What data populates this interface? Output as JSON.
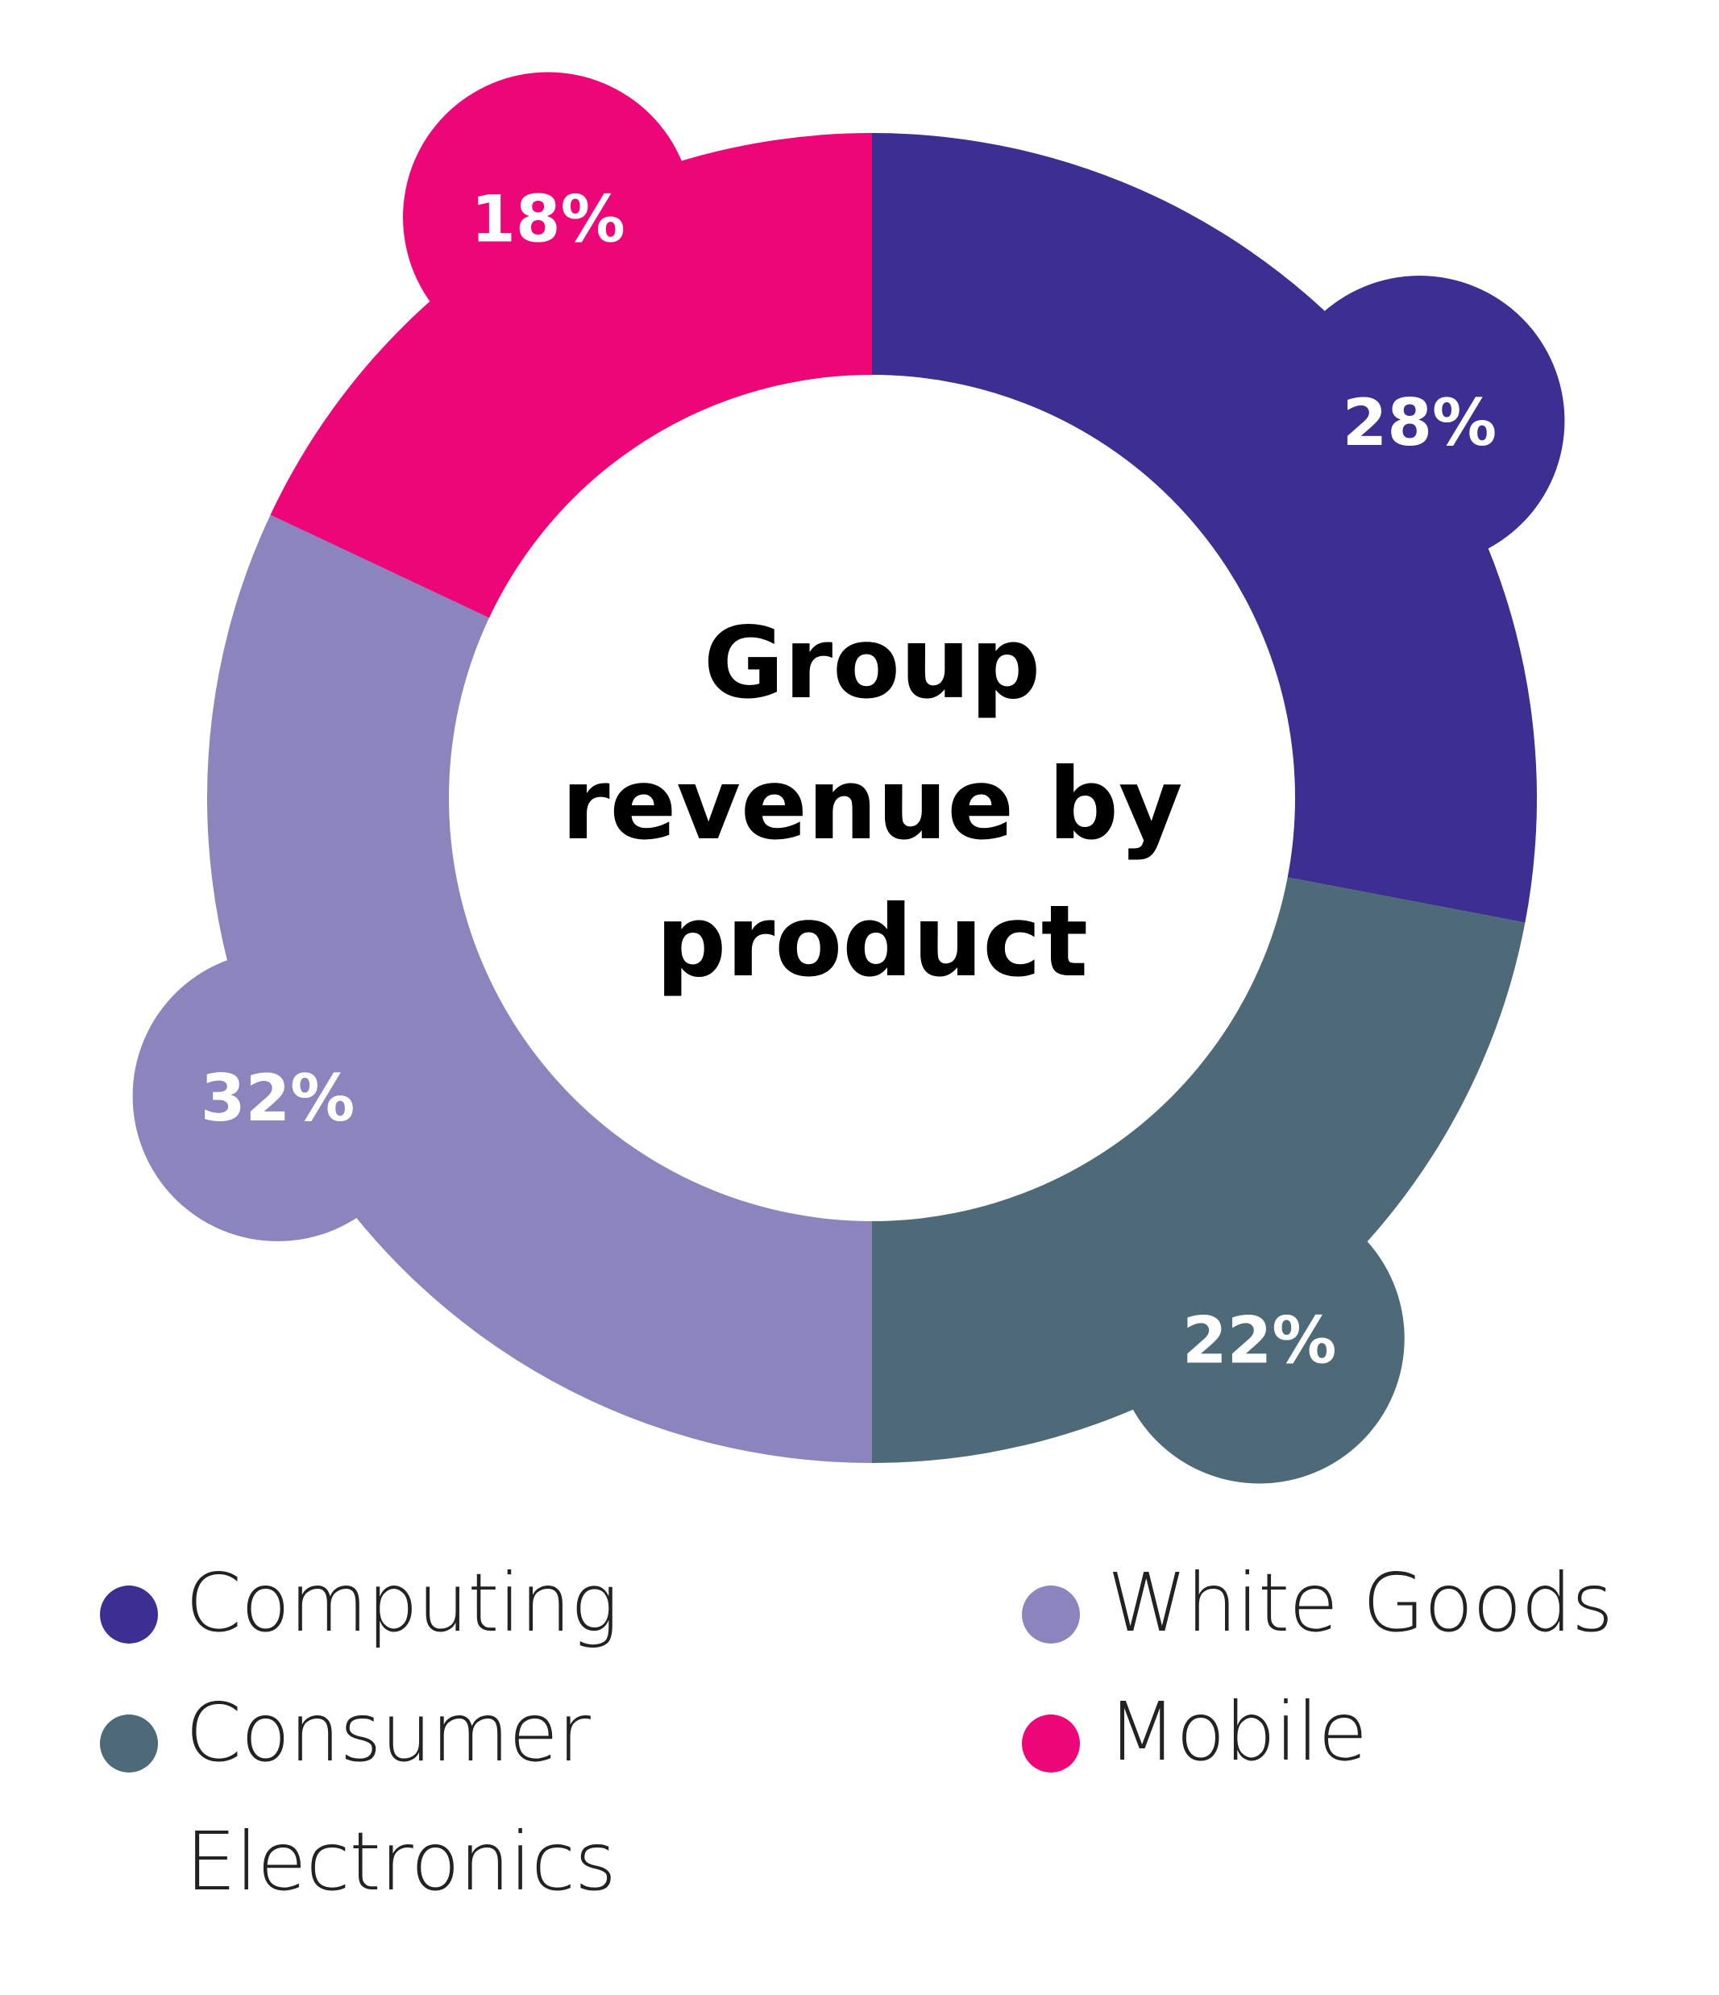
{
  "chart_data": {
    "type": "pie",
    "title": "Group revenue by product",
    "title_lines": [
      "Group",
      "revenue by",
      "product"
    ],
    "categories": [
      "Computing",
      "Consumer Electronics",
      "White Goods",
      "Mobile"
    ],
    "values": [
      28,
      22,
      32,
      18
    ],
    "labels": [
      "28%",
      "22%",
      "32%",
      "18%"
    ],
    "colors": [
      "#3D2E91",
      "#4E6A79",
      "#8C84BD",
      "#EC0677"
    ],
    "donut": true,
    "legend_position": "bottom"
  },
  "legend": {
    "items": [
      {
        "label": "Computing",
        "color": "#3D2E91"
      },
      {
        "label": "Consumer Electronics",
        "color": "#4E6A79"
      },
      {
        "label": "White Goods",
        "color": "#8C84BD"
      },
      {
        "label": "Mobile",
        "color": "#EC0677"
      }
    ]
  }
}
